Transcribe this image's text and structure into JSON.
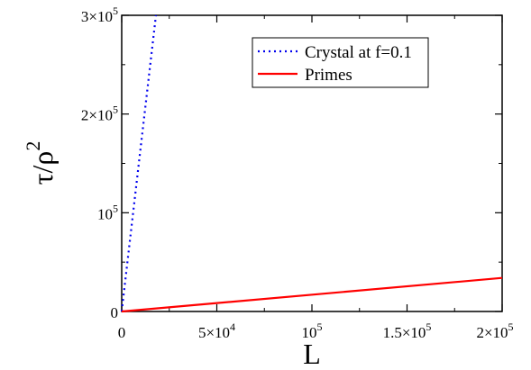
{
  "chart_data": {
    "type": "line",
    "xlabel": "L",
    "ylabel": "τ/ρ",
    "ylabel_superscript": "2",
    "xlim": [
      0,
      200000
    ],
    "ylim": [
      0,
      300000
    ],
    "x_ticks": [
      {
        "value": 0,
        "mantissa": "0",
        "exponent": ""
      },
      {
        "value": 50000,
        "mantissa": "5×10",
        "exponent": "4"
      },
      {
        "value": 100000,
        "mantissa": "10",
        "exponent": "5"
      },
      {
        "value": 150000,
        "mantissa": "1.5×10",
        "exponent": "5"
      },
      {
        "value": 200000,
        "mantissa": "2×10",
        "exponent": "5"
      }
    ],
    "y_ticks": [
      {
        "value": 0,
        "mantissa": "0",
        "exponent": ""
      },
      {
        "value": 100000,
        "mantissa": "10",
        "exponent": "5"
      },
      {
        "value": 200000,
        "mantissa": "2×10",
        "exponent": "5"
      },
      {
        "value": 300000,
        "mantissa": "3×10",
        "exponent": "5"
      }
    ],
    "grid": false,
    "legend_position": "top-right",
    "series": [
      {
        "name": "Crystal at f=0.1",
        "color": "#0000ee",
        "style": "dotted",
        "x": [
          0,
          18000
        ],
        "y": [
          0,
          300000
        ]
      },
      {
        "name": "Primes",
        "color": "#ff0000",
        "style": "solid",
        "x": [
          0,
          200000
        ],
        "y": [
          0,
          34000
        ]
      }
    ]
  }
}
